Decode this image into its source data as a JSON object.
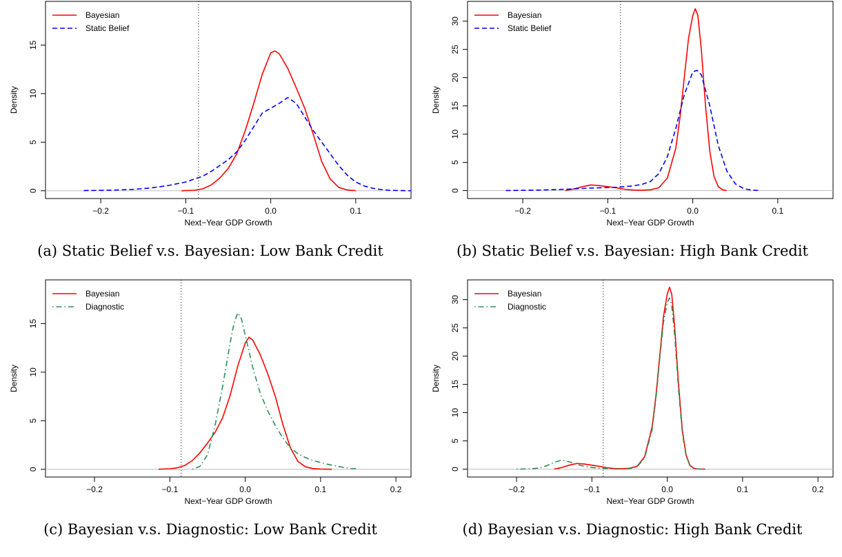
{
  "chart_data": [
    {
      "type": "line",
      "caption": "(a) Static Belief v.s. Bayesian: Low Bank Credit",
      "xlabel": "Next−Year GDP Growth",
      "ylabel": "Density",
      "xlim": [
        -0.265,
        0.165
      ],
      "ylim": [
        -0.8,
        19.5
      ],
      "xticks": [
        -0.2,
        -0.1,
        0.0,
        0.1
      ],
      "xtick_labels": [
        "−0.2",
        "−0.1",
        "0.0",
        "0.1"
      ],
      "yticks": [
        0,
        5,
        10,
        15
      ],
      "ytick_labels": [
        "0",
        "5",
        "10",
        "15"
      ],
      "vline": -0.085,
      "legend_position": "top-left",
      "series": [
        {
          "name": "Bayesian",
          "color": "#ff0000",
          "dash": "solid",
          "x": [
            -0.105,
            -0.09,
            -0.08,
            -0.07,
            -0.06,
            -0.05,
            -0.04,
            -0.03,
            -0.02,
            -0.01,
            0.0,
            0.005,
            0.01,
            0.02,
            0.03,
            0.04,
            0.05,
            0.06,
            0.07,
            0.08,
            0.09,
            0.1
          ],
          "y": [
            0,
            0.05,
            0.2,
            0.6,
            1.3,
            2.3,
            3.8,
            6.2,
            9.0,
            12.0,
            14.2,
            14.4,
            14.1,
            12.6,
            10.6,
            8.5,
            5.8,
            3.0,
            1.2,
            0.35,
            0.08,
            0.01
          ]
        },
        {
          "name": "Static Belief",
          "color": "#0000ff",
          "dash": "dashed",
          "x": [
            -0.22,
            -0.2,
            -0.18,
            -0.16,
            -0.14,
            -0.12,
            -0.1,
            -0.09,
            -0.08,
            -0.07,
            -0.06,
            -0.05,
            -0.04,
            -0.03,
            -0.02,
            -0.01,
            0.0,
            0.01,
            0.02,
            0.03,
            0.04,
            0.05,
            0.06,
            0.07,
            0.08,
            0.09,
            0.1,
            0.11,
            0.12,
            0.13,
            0.14,
            0.15,
            0.165
          ],
          "y": [
            0.02,
            0.04,
            0.08,
            0.15,
            0.3,
            0.55,
            0.9,
            1.2,
            1.5,
            2.0,
            2.6,
            3.2,
            4.0,
            5.2,
            6.6,
            8.0,
            8.5,
            9.0,
            9.6,
            9.0,
            7.6,
            6.2,
            5.0,
            3.8,
            2.6,
            1.6,
            0.9,
            0.5,
            0.25,
            0.12,
            0.05,
            0.02,
            0.0
          ]
        }
      ]
    },
    {
      "type": "line",
      "caption": "(b) Static Belief v.s. Bayesian: High Bank Credit",
      "xlabel": "Next−Year GDP Growth",
      "ylabel": "Density",
      "xlim": [
        -0.265,
        0.165
      ],
      "ylim": [
        -1.4,
        33.5
      ],
      "xticks": [
        -0.2,
        -0.1,
        0.0,
        0.1
      ],
      "xtick_labels": [
        "−0.2",
        "−0.1",
        "0.0",
        "0.1"
      ],
      "yticks": [
        0,
        5,
        10,
        15,
        20,
        25,
        30
      ],
      "ytick_labels": [
        "0",
        "5",
        "10",
        "15",
        "20",
        "25",
        "30"
      ],
      "vline": -0.085,
      "legend_position": "top-left",
      "series": [
        {
          "name": "Bayesian",
          "color": "#ff0000",
          "dash": "solid",
          "x": [
            -0.15,
            -0.14,
            -0.13,
            -0.12,
            -0.11,
            -0.1,
            -0.09,
            -0.08,
            -0.07,
            -0.06,
            -0.05,
            -0.04,
            -0.03,
            -0.02,
            -0.015,
            -0.01,
            -0.005,
            0.0,
            0.003,
            0.006,
            0.01,
            0.015,
            0.02,
            0.025,
            0.03,
            0.035,
            0.04
          ],
          "y": [
            0,
            0.3,
            0.7,
            1.0,
            0.9,
            0.7,
            0.5,
            0.25,
            0.1,
            0.08,
            0.15,
            0.5,
            2.2,
            7.5,
            13.0,
            20.0,
            27.0,
            31.0,
            32.2,
            31.0,
            25.0,
            15.0,
            7.0,
            2.5,
            0.7,
            0.15,
            0.0
          ]
        },
        {
          "name": "Static Belief",
          "color": "#0000ff",
          "dash": "dashed",
          "x": [
            -0.22,
            -0.2,
            -0.18,
            -0.16,
            -0.14,
            -0.12,
            -0.1,
            -0.09,
            -0.08,
            -0.07,
            -0.06,
            -0.05,
            -0.04,
            -0.03,
            -0.02,
            -0.01,
            0.0,
            0.005,
            0.01,
            0.02,
            0.03,
            0.04,
            0.05,
            0.06,
            0.07,
            0.08
          ],
          "y": [
            0.02,
            0.05,
            0.1,
            0.2,
            0.3,
            0.45,
            0.55,
            0.6,
            0.7,
            0.85,
            1.1,
            1.6,
            3.0,
            6.0,
            11.0,
            17.0,
            21.0,
            21.3,
            20.5,
            15.0,
            8.0,
            3.5,
            1.2,
            0.35,
            0.08,
            0.01
          ]
        }
      ]
    },
    {
      "type": "line",
      "caption": "(c) Bayesian v.s. Diagnostic: Low Bank Credit",
      "xlabel": "Next−Year GDP Growth",
      "ylabel": "Density",
      "xlim": [
        -0.265,
        0.22
      ],
      "ylim": [
        -0.8,
        19.5
      ],
      "xticks": [
        -0.2,
        -0.1,
        0.0,
        0.1,
        0.2
      ],
      "xtick_labels": [
        "−0.2",
        "−0.1",
        "0.0",
        "0.1",
        "0.2"
      ],
      "yticks": [
        0,
        5,
        10,
        15
      ],
      "ytick_labels": [
        "0",
        "5",
        "10",
        "15"
      ],
      "vline": -0.085,
      "legend_position": "top-left",
      "series": [
        {
          "name": "Bayesian",
          "color": "#ff0000",
          "dash": "solid",
          "x": [
            -0.115,
            -0.1,
            -0.09,
            -0.08,
            -0.07,
            -0.06,
            -0.05,
            -0.04,
            -0.03,
            -0.02,
            -0.01,
            0.0,
            0.005,
            0.01,
            0.02,
            0.03,
            0.04,
            0.05,
            0.06,
            0.07,
            0.08,
            0.09,
            0.1,
            0.115
          ],
          "y": [
            0,
            0.05,
            0.15,
            0.4,
            0.9,
            1.7,
            2.7,
            3.8,
            5.3,
            7.6,
            10.6,
            13.0,
            13.6,
            13.3,
            11.8,
            9.8,
            7.5,
            4.6,
            2.2,
            0.8,
            0.25,
            0.07,
            0.02,
            0.0
          ]
        },
        {
          "name": "Diagnostic",
          "color": "#2e8b57",
          "dash": "dotdash",
          "x": [
            -0.07,
            -0.06,
            -0.05,
            -0.04,
            -0.03,
            -0.02,
            -0.015,
            -0.01,
            -0.005,
            0.0,
            0.01,
            0.02,
            0.03,
            0.04,
            0.05,
            0.06,
            0.07,
            0.08,
            0.09,
            0.1,
            0.11,
            0.12,
            0.13,
            0.14,
            0.15
          ],
          "y": [
            0,
            0.3,
            1.5,
            4.5,
            8.5,
            13.0,
            15.0,
            16.1,
            15.5,
            13.8,
            10.5,
            7.8,
            6.0,
            4.5,
            3.2,
            2.2,
            1.6,
            1.2,
            0.9,
            0.7,
            0.5,
            0.35,
            0.2,
            0.1,
            0.03
          ]
        }
      ]
    },
    {
      "type": "line",
      "caption": "(d) Bayesian v.s. Diagnostic: High Bank Credit",
      "xlabel": "Next−Year GDP Growth",
      "ylabel": "Density",
      "xlim": [
        -0.265,
        0.22
      ],
      "ylim": [
        -1.4,
        33.5
      ],
      "xticks": [
        -0.2,
        -0.1,
        0.0,
        0.1,
        0.2
      ],
      "xtick_labels": [
        "−0.2",
        "−0.1",
        "0.0",
        "0.1",
        "0.2"
      ],
      "yticks": [
        0,
        5,
        10,
        15,
        20,
        25,
        30
      ],
      "ytick_labels": [
        "0",
        "5",
        "10",
        "15",
        "20",
        "25",
        "30"
      ],
      "vline": -0.085,
      "legend_position": "top-left",
      "series": [
        {
          "name": "Bayesian",
          "color": "#ff0000",
          "dash": "solid",
          "x": [
            -0.15,
            -0.14,
            -0.13,
            -0.12,
            -0.11,
            -0.1,
            -0.09,
            -0.08,
            -0.07,
            -0.06,
            -0.05,
            -0.04,
            -0.03,
            -0.02,
            -0.015,
            -0.01,
            -0.005,
            0.0,
            0.003,
            0.006,
            0.01,
            0.015,
            0.02,
            0.025,
            0.03,
            0.035,
            0.04,
            0.05
          ],
          "y": [
            0,
            0.3,
            0.7,
            1.0,
            0.9,
            0.7,
            0.5,
            0.25,
            0.1,
            0.08,
            0.15,
            0.5,
            2.2,
            7.5,
            13.0,
            20.0,
            27.0,
            31.0,
            32.2,
            31.0,
            25.0,
            15.0,
            7.0,
            2.5,
            0.7,
            0.15,
            0.03,
            0.0
          ]
        },
        {
          "name": "Diagnostic",
          "color": "#2e8b57",
          "dash": "dotdash",
          "x": [
            -0.2,
            -0.18,
            -0.17,
            -0.16,
            -0.15,
            -0.14,
            -0.13,
            -0.12,
            -0.11,
            -0.1,
            -0.09,
            -0.08,
            -0.07,
            -0.06,
            -0.05,
            -0.04,
            -0.03,
            -0.02,
            -0.015,
            -0.01,
            -0.005,
            0.0,
            0.003,
            0.006,
            0.01,
            0.015,
            0.02,
            0.025,
            0.03,
            0.035,
            0.04,
            0.05,
            0.055
          ],
          "y": [
            0,
            0.05,
            0.2,
            0.6,
            1.2,
            1.6,
            1.3,
            0.8,
            0.5,
            0.3,
            0.15,
            0.06,
            0.03,
            0.02,
            0.06,
            0.4,
            2.0,
            7.0,
            12.5,
            19.5,
            26.0,
            29.5,
            30.3,
            29.0,
            23.5,
            14.0,
            6.5,
            2.3,
            0.6,
            0.12,
            0.03,
            0.0,
            0.0
          ]
        }
      ]
    }
  ]
}
